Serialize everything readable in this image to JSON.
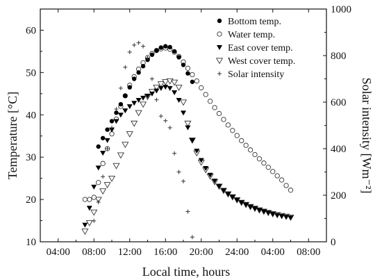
{
  "chart_data": {
    "type": "scatter",
    "xlabel": "Local time, hours",
    "ylabel": "Temperature [°C]",
    "y2label": "Solar intensity [Wm⁻²]",
    "x_unit": "hours (elapsed from 00:00 of day 1)",
    "xlim": [
      2,
      34
    ],
    "ylim": [
      10,
      65
    ],
    "y2lim": [
      0,
      1000
    ],
    "xtick_hours": [
      4,
      8,
      12,
      16,
      20,
      24,
      28,
      32
    ],
    "xtick_labels": [
      "04:00",
      "08:00",
      "12:00",
      "16:00",
      "20:00",
      "24:00",
      "04:00",
      "08:00"
    ],
    "ytick_values": [
      10,
      20,
      30,
      40,
      50,
      60
    ],
    "ytick_labels": [
      "10",
      "20",
      "30",
      "40",
      "50",
      "60"
    ],
    "y2tick_values": [
      0,
      200,
      400,
      600,
      800,
      1000
    ],
    "y2tick_labels": [
      "0",
      "200",
      "400",
      "600",
      "800",
      "1000"
    ],
    "legend_position": "top-right inside",
    "series": [
      {
        "name": "Bottom temp.",
        "marker": "filled-circle",
        "axis": "left",
        "x": [
          8.5,
          9.0,
          9.5,
          10.0,
          10.5,
          11.0,
          11.5,
          12.0,
          12.5,
          13.0,
          13.5,
          14.0,
          14.5,
          15.0,
          15.5,
          16.0,
          16.5,
          17.0,
          17.5,
          18.0,
          18.5,
          19.0
        ],
        "y": [
          32.5,
          34.5,
          36.5,
          38.5,
          40.5,
          42.5,
          44.5,
          46.5,
          48.5,
          50.0,
          51.5,
          53.0,
          54.2,
          55.2,
          55.9,
          56.2,
          56.0,
          55.0,
          53.6,
          51.8,
          49.8,
          47.8
        ]
      },
      {
        "name": "Water temp.",
        "marker": "open-circle",
        "axis": "left",
        "x": [
          7.0,
          7.5,
          8.0,
          8.5,
          9.0,
          9.5,
          10.0,
          10.5,
          11.0,
          11.5,
          12.0,
          12.5,
          13.0,
          13.5,
          14.0,
          14.5,
          15.0,
          15.5,
          16.0,
          16.5,
          17.0,
          17.5,
          18.0,
          18.5,
          19.0,
          19.5,
          20.0,
          20.5,
          21.0,
          21.5,
          22.0,
          22.5,
          23.0,
          23.5,
          24.0,
          24.5,
          25.0,
          25.5,
          26.0,
          26.5,
          27.0,
          27.5,
          28.0,
          28.5,
          29.0,
          29.5,
          30.0
        ],
        "y": [
          20.0,
          20.0,
          20.5,
          24.0,
          28.5,
          32.0,
          35.5,
          39.0,
          42.0,
          44.5,
          47.0,
          49.0,
          50.8,
          52.3,
          53.5,
          54.5,
          55.2,
          55.6,
          55.8,
          55.5,
          54.8,
          53.8,
          52.5,
          51.0,
          49.5,
          48.0,
          46.4,
          44.8,
          43.2,
          41.7,
          40.3,
          38.9,
          37.6,
          36.3,
          35.1,
          33.9,
          32.8,
          31.7,
          30.6,
          29.6,
          28.6,
          27.6,
          26.6,
          25.6,
          24.6,
          23.3,
          22.2
        ]
      },
      {
        "name": "East cover temp.",
        "marker": "filled-triangle-down",
        "axis": "left",
        "x": [
          7.0,
          7.5,
          8.0,
          8.5,
          9.0,
          9.5,
          10.0,
          10.5,
          11.0,
          11.5,
          12.0,
          12.5,
          13.0,
          13.5,
          14.0,
          14.5,
          15.0,
          15.5,
          16.0,
          16.5,
          17.0,
          17.5,
          18.0,
          18.5,
          19.0,
          19.5,
          20.0,
          20.5,
          21.0,
          21.5,
          22.0,
          22.5,
          23.0,
          23.5,
          24.0,
          24.5,
          25.0,
          25.5,
          26.0,
          26.5,
          27.0,
          27.5,
          28.0,
          28.5,
          29.0,
          29.5,
          30.0
        ],
        "y": [
          14.0,
          18.0,
          23.0,
          27.5,
          31.0,
          34.0,
          36.5,
          38.5,
          40.0,
          41.0,
          42.0,
          42.8,
          43.5,
          44.0,
          44.5,
          45.0,
          45.7,
          46.3,
          46.6,
          46.3,
          45.3,
          43.5,
          40.5,
          37.0,
          34.0,
          31.5,
          29.3,
          27.4,
          25.8,
          24.4,
          23.2,
          22.2,
          21.3,
          20.6,
          19.9,
          19.3,
          18.8,
          18.3,
          17.9,
          17.5,
          17.2,
          16.9,
          16.6,
          16.3,
          16.1,
          15.9,
          15.7
        ]
      },
      {
        "name": "West cover temp.",
        "marker": "open-triangle-down",
        "axis": "left",
        "x": [
          7.0,
          7.5,
          8.0,
          8.5,
          9.0,
          9.5,
          10.0,
          10.5,
          11.0,
          11.5,
          12.0,
          12.5,
          13.0,
          13.5,
          14.0,
          14.5,
          15.0,
          15.5,
          16.0,
          16.5,
          17.0,
          17.5,
          18.0,
          18.5,
          19.0,
          19.5,
          20.0,
          20.5,
          21.0,
          21.5,
          22.0,
          22.5,
          23.0,
          23.5,
          24.0,
          24.5,
          25.0,
          25.5,
          26.0,
          26.5,
          27.0,
          27.5,
          28.0,
          28.5,
          29.0,
          29.5,
          30.0
        ],
        "y": [
          12.5,
          14.5,
          17.0,
          20.0,
          22.0,
          23.5,
          25.0,
          28.0,
          30.5,
          33.0,
          35.5,
          38.0,
          40.5,
          42.5,
          44.3,
          45.5,
          46.5,
          47.3,
          47.8,
          48.0,
          47.7,
          46.5,
          43.0,
          38.0,
          34.0,
          31.0,
          28.8,
          27.0,
          25.5,
          24.2,
          23.1,
          22.1,
          21.3,
          20.6,
          19.9,
          19.3,
          18.8,
          18.3,
          17.9,
          17.5,
          17.2,
          16.9,
          16.6,
          16.4,
          16.2,
          16.0,
          15.8
        ]
      },
      {
        "name": "Solar intensity",
        "marker": "plus",
        "axis": "right",
        "x": [
          8.0,
          8.5,
          9.0,
          9.5,
          10.0,
          10.5,
          11.0,
          11.5,
          12.0,
          12.5,
          13.0,
          13.5,
          14.0,
          14.5,
          15.0,
          15.5,
          16.0,
          16.5,
          17.0,
          17.5,
          18.0,
          18.5,
          19.0
        ],
        "y": [
          90,
          170,
          280,
          400,
          490,
          570,
          660,
          750,
          815,
          845,
          855,
          840,
          790,
          700,
          610,
          540,
          520,
          490,
          380,
          300,
          260,
          130,
          20
        ]
      }
    ]
  }
}
